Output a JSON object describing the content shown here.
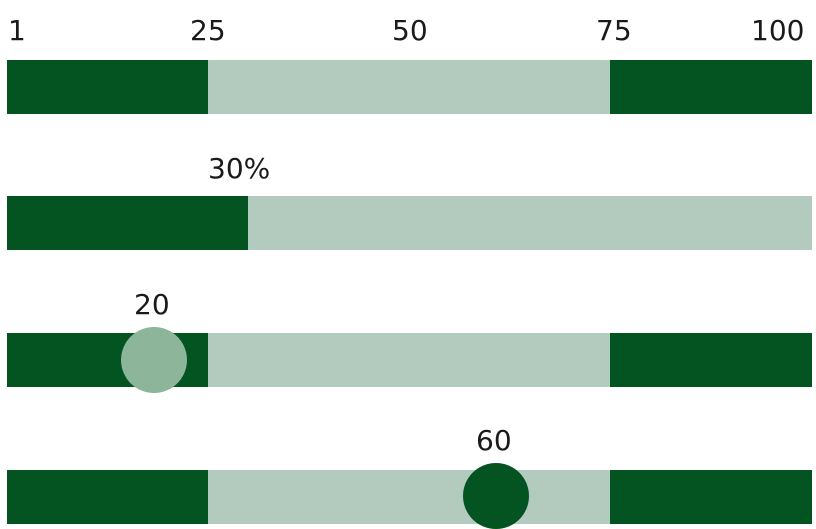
{
  "scale": {
    "ticks": [
      "1",
      "25",
      "50",
      "75",
      "100"
    ]
  },
  "range_bar": {
    "low": 25,
    "high": 75
  },
  "progress": {
    "label": "30%",
    "value": 30
  },
  "slider_a": {
    "label": "20",
    "value": 20
  },
  "slider_b": {
    "label": "60",
    "value": 60
  },
  "colors": {
    "dark": "#035421",
    "light": "#b3cbbf",
    "thumb_a": "#8db59a",
    "thumb_b": "#035421"
  }
}
